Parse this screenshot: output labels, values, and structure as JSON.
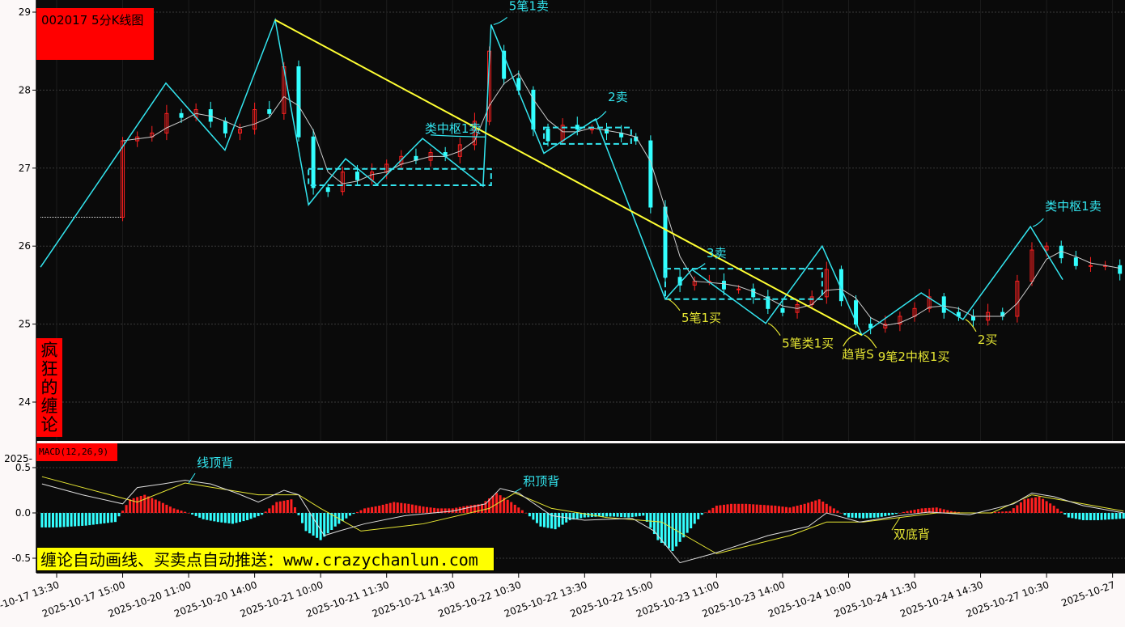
{
  "chart_data": [
    {
      "type": "candlestick",
      "title": "002017 5分K线图",
      "side_label": "疯狂的缠论",
      "ylim": [
        23.9,
        29.1
      ],
      "yticks": [
        29,
        28,
        27,
        26,
        25,
        24
      ],
      "grid": true,
      "pre_open_price": 26.37,
      "colors": {
        "up": "#ff2020",
        "down": "#33ffff",
        "pen": "#33e6f0",
        "trend": "#ffff33",
        "zone": "#33e6f0",
        "ma": "#cccccc",
        "buy": "#e6e633",
        "sell": "#33e6f0"
      },
      "x_axis": {
        "tick_bars": [
          0,
          18,
          36,
          54,
          72,
          90,
          108,
          126,
          144,
          162,
          180,
          198,
          216,
          234,
          252,
          270,
          288
        ],
        "tick_labels": [
          "2025-10-17 13:30",
          "2025-10-17 15:00",
          "2025-10-20 11:00",
          "2025-10-20 14:00",
          "2025-10-21 10:00",
          "2025-10-21 11:30",
          "2025-10-21 14:30",
          "2025-10-22 10:30",
          "2025-10-22 13:30",
          "2025-10-22 15:00",
          "2025-10-23 11:00",
          "2025-10-23 14:00",
          "2025-10-24 10:00",
          "2025-10-24 11:30",
          "2025-10-24 14:30",
          "2025-10-27 10:30",
          "2025-10-27"
        ]
      },
      "closes_start_bar": 18,
      "closes_step": 4,
      "closes": [
        27.35,
        27.4,
        27.45,
        27.7,
        27.65,
        27.75,
        27.6,
        27.45,
        27.5,
        27.75,
        27.7,
        28.3,
        27.4,
        26.75,
        26.7,
        26.95,
        26.85,
        26.95,
        27.05,
        27.15,
        27.1,
        27.2,
        27.15,
        27.3,
        27.6,
        28.5,
        28.15,
        28.0,
        27.5,
        27.35,
        27.55,
        27.5,
        27.5,
        27.45,
        27.4,
        27.35,
        26.5,
        25.6,
        25.5,
        25.55,
        25.55,
        25.45,
        25.45,
        25.35,
        25.2,
        25.15,
        25.25,
        25.35,
        25.7,
        25.3,
        25.0,
        24.95,
        25.0,
        25.1,
        25.2,
        25.35,
        25.15,
        25.1,
        25.05,
        25.15,
        25.1,
        25.55,
        25.95,
        26.0,
        25.85,
        25.75,
        25.75,
        25.75,
        25.65
      ],
      "pens": [
        [
          -4.4,
          25.73
        ],
        [
          29.8,
          28.09
        ],
        [
          45.9,
          27.23
        ],
        [
          59.6,
          28.9
        ],
        [
          68.7,
          26.53
        ],
        [
          78.8,
          27.12
        ],
        [
          87.4,
          26.79
        ],
        [
          99.8,
          27.38
        ],
        [
          116.3,
          26.77
        ],
        [
          118.5,
          28.84
        ],
        [
          132.9,
          27.19
        ],
        [
          147.0,
          27.63
        ],
        [
          166.0,
          25.32
        ],
        [
          173.3,
          25.7
        ],
        [
          193.4,
          25.01
        ],
        [
          208.8,
          26.0
        ],
        [
          219.6,
          24.86
        ],
        [
          235.8,
          25.4
        ],
        [
          247.2,
          25.06
        ],
        [
          265.6,
          26.25
        ],
        [
          274.4,
          25.57
        ]
      ],
      "trend_line": [
        [
          59.6,
          28.9
        ],
        [
          219.6,
          24.86
        ]
      ],
      "zones": [
        {
          "from": 68.7,
          "to": 118.5,
          "high": 26.99,
          "low": 26.78
        },
        {
          "from": 132.9,
          "to": 156.7,
          "high": 27.52,
          "low": 27.31
        },
        {
          "from": 166.0,
          "to": 208.8,
          "high": 25.71,
          "low": 25.32
        }
      ],
      "annotations": [
        {
          "text": "5笔1卖",
          "type": "sell",
          "at": [
            118.5,
            28.84
          ]
        },
        {
          "text": "类中枢1卖",
          "type": "sell",
          "at": [
            116.3,
            27.4
          ]
        },
        {
          "text": "2卖",
          "type": "sell",
          "at": [
            145.5,
            27.6
          ]
        },
        {
          "text": "3卖",
          "type": "sell",
          "at": [
            173.3,
            25.7
          ]
        },
        {
          "text": "类中枢1卖",
          "type": "sell",
          "at": [
            265.6,
            26.25
          ]
        },
        {
          "text": "5笔1买",
          "type": "buy",
          "at": [
            166.0,
            25.32
          ]
        },
        {
          "text": "5笔类1买",
          "type": "buy",
          "at": [
            193.4,
            25.01
          ]
        },
        {
          "text": "趋背S",
          "type": "buy",
          "at": [
            217.5,
            24.87
          ]
        },
        {
          "text": "9笔2中枢1买",
          "type": "buy",
          "at": [
            219.6,
            24.86
          ]
        },
        {
          "text": "2买",
          "type": "buy",
          "at": [
            247.2,
            25.06
          ]
        }
      ]
    },
    {
      "type": "bar+line",
      "title": "MACD(12,26,9)",
      "ylim": [
        -0.62,
        0.6
      ],
      "yticks": [
        0.5,
        0.0,
        -0.5
      ],
      "ytick_labels": [
        "0.5",
        "0.0",
        "-0.5"
      ],
      "cut_label": "2025-",
      "hist_start_bar": -4,
      "hist_step": 4,
      "histogram": [
        -0.16,
        -0.16,
        -0.15,
        -0.14,
        -0.12,
        -0.1,
        0.15,
        0.2,
        0.13,
        0.05,
        0.0,
        -0.07,
        -0.1,
        -0.12,
        -0.08,
        -0.02,
        0.12,
        0.15,
        -0.2,
        -0.3,
        -0.15,
        -0.03,
        0.05,
        0.08,
        0.12,
        0.1,
        0.07,
        0.05,
        0.05,
        0.08,
        0.1,
        0.22,
        0.12,
        0.0,
        -0.15,
        -0.18,
        -0.08,
        -0.05,
        -0.04,
        -0.04,
        -0.05,
        -0.03,
        -0.3,
        -0.42,
        -0.22,
        -0.02,
        0.08,
        0.1,
        0.1,
        0.09,
        0.08,
        0.06,
        0.1,
        0.15,
        0.05,
        -0.05,
        -0.06,
        -0.05,
        -0.02,
        0.02,
        0.05,
        0.06,
        0.02,
        0.0,
        0.0,
        0.01,
        0.02,
        0.15,
        0.18,
        0.08,
        -0.05,
        -0.08,
        -0.08,
        -0.07,
        -0.06
      ],
      "dif": [
        [
          -4,
          0.32
        ],
        [
          7,
          0.2
        ],
        [
          18,
          0.1
        ],
        [
          22,
          0.28
        ],
        [
          29,
          0.32
        ],
        [
          35,
          0.36
        ],
        [
          42,
          0.32
        ],
        [
          49,
          0.22
        ],
        [
          55,
          0.12
        ],
        [
          62,
          0.25
        ],
        [
          66,
          0.2
        ],
        [
          73,
          -0.25
        ],
        [
          77,
          -0.2
        ],
        [
          84,
          -0.12
        ],
        [
          95,
          -0.03
        ],
        [
          108,
          0.02
        ],
        [
          117,
          0.1
        ],
        [
          121,
          0.27
        ],
        [
          126,
          0.22
        ],
        [
          135,
          -0.03
        ],
        [
          144,
          -0.08
        ],
        [
          157,
          -0.06
        ],
        [
          163,
          -0.2
        ],
        [
          170,
          -0.55
        ],
        [
          179,
          -0.45
        ],
        [
          194,
          -0.25
        ],
        [
          205,
          -0.15
        ],
        [
          210,
          0.0
        ],
        [
          219,
          -0.1
        ],
        [
          230,
          -0.03
        ],
        [
          238,
          0.01
        ],
        [
          249,
          -0.02
        ],
        [
          261,
          0.1
        ],
        [
          266,
          0.22
        ],
        [
          272,
          0.18
        ],
        [
          280,
          0.08
        ],
        [
          291,
          0.0
        ]
      ],
      "dea": [
        [
          -4,
          0.4
        ],
        [
          22,
          0.12
        ],
        [
          35,
          0.33
        ],
        [
          55,
          0.2
        ],
        [
          66,
          0.2
        ],
        [
          72,
          0.05
        ],
        [
          83,
          -0.2
        ],
        [
          100,
          -0.12
        ],
        [
          118,
          0.05
        ],
        [
          125,
          0.22
        ],
        [
          135,
          0.05
        ],
        [
          150,
          -0.05
        ],
        [
          165,
          -0.1
        ],
        [
          180,
          -0.45
        ],
        [
          200,
          -0.25
        ],
        [
          210,
          -0.1
        ],
        [
          220,
          -0.1
        ],
        [
          240,
          0.0
        ],
        [
          255,
          0.0
        ],
        [
          266,
          0.2
        ],
        [
          280,
          0.1
        ],
        [
          291,
          0.02
        ]
      ],
      "colors": {
        "pos": "#ff2020",
        "neg": "#33ffff",
        "dif": "#dddddd",
        "dea": "#e6e633"
      },
      "annotations": [
        {
          "text": "线顶背",
          "type": "sell",
          "at": [
            36,
            0.33
          ]
        },
        {
          "text": "积顶背",
          "type": "sell",
          "at": [
            125,
            0.23
          ]
        },
        {
          "text": "双底背",
          "type": "buy",
          "at": [
            230,
            -0.05
          ]
        }
      ]
    }
  ],
  "banner": "缠论自动画线、买卖点自动推送：www.crazychanlun.com"
}
